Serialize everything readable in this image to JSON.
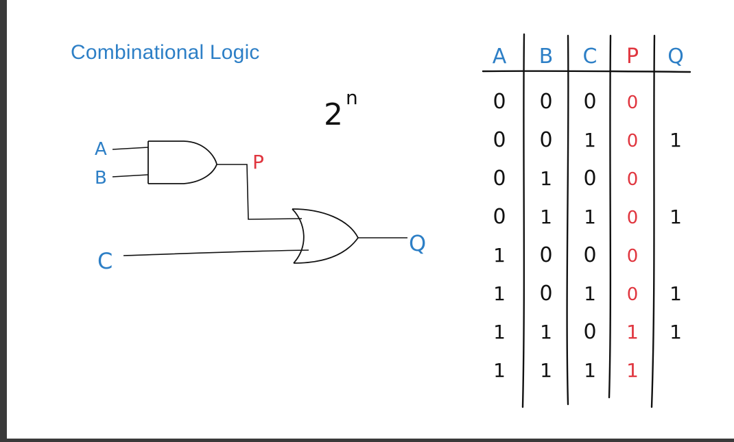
{
  "title": "Combinational Logic",
  "annotation": {
    "base": "2",
    "exponent": "n"
  },
  "circuit": {
    "inputs": [
      "A",
      "B",
      "C"
    ],
    "intermediate": "P",
    "output": "Q",
    "gates": [
      "and-gate",
      "or-gate"
    ]
  },
  "truth_table": {
    "headers": [
      "A",
      "B",
      "C",
      "P",
      "Q"
    ],
    "rows": [
      [
        "0",
        "0",
        "0",
        "0",
        ""
      ],
      [
        "0",
        "0",
        "1",
        "0",
        "1"
      ],
      [
        "0",
        "1",
        "0",
        "0",
        ""
      ],
      [
        "0",
        "1",
        "1",
        "0",
        "1"
      ],
      [
        "1",
        "0",
        "0",
        "0",
        ""
      ],
      [
        "1",
        "0",
        "1",
        "0",
        "1"
      ],
      [
        "1",
        "1",
        "0",
        "1",
        "1"
      ],
      [
        "1",
        "1",
        "1",
        "1",
        ""
      ]
    ]
  },
  "colors": {
    "blue": "#2d7fc6",
    "red": "#e0363f",
    "ink": "#111111"
  }
}
